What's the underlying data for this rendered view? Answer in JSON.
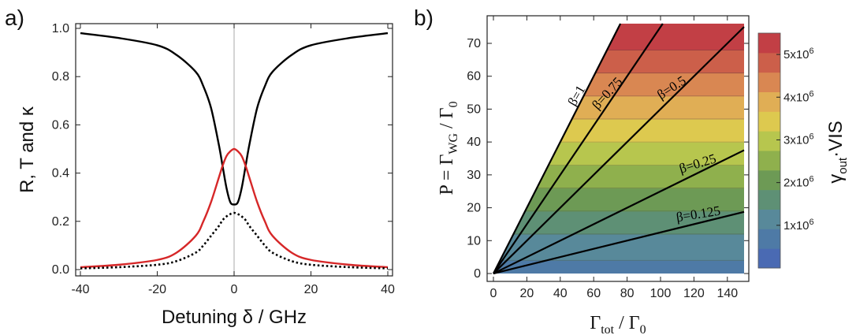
{
  "chart_data": [
    {
      "panel_label": "a)",
      "type": "line",
      "xlabel": "Detuning δ / GHz",
      "ylabel": "R, T and κ",
      "xlim": [
        -40,
        40
      ],
      "ylim": [
        0,
        1
      ],
      "xticks": [
        "-40",
        "-20",
        "0",
        "20",
        "40"
      ],
      "xtick_values": [
        -40,
        -20,
        0,
        20,
        40
      ],
      "yticks": [
        "0.0",
        "0.2",
        "0.4",
        "0.6",
        "0.8",
        "1.0"
      ],
      "ytick_values": [
        0,
        0.2,
        0.4,
        0.6,
        0.8,
        1.0
      ],
      "grid": false,
      "vertical_reference_line_x": 0,
      "series": [
        {
          "color": "#000000",
          "style": "solid",
          "x": [
            -40,
            -30,
            -20,
            -15,
            -10,
            -8,
            -6,
            -4,
            -3,
            -2,
            -1,
            0,
            1,
            2,
            3,
            4,
            6,
            8,
            10,
            15,
            20,
            30,
            40
          ],
          "y": [
            0.98,
            0.96,
            0.93,
            0.89,
            0.82,
            0.76,
            0.67,
            0.52,
            0.43,
            0.34,
            0.28,
            0.27,
            0.28,
            0.34,
            0.43,
            0.52,
            0.67,
            0.76,
            0.82,
            0.89,
            0.93,
            0.96,
            0.98
          ]
        },
        {
          "color": "#d62728",
          "style": "solid",
          "x": [
            -40,
            -30,
            -20,
            -15,
            -10,
            -8,
            -6,
            -4,
            -3,
            -2,
            -1,
            0,
            1,
            2,
            3,
            4,
            6,
            8,
            10,
            15,
            20,
            30,
            40
          ],
          "y": [
            0.01,
            0.02,
            0.04,
            0.07,
            0.14,
            0.2,
            0.28,
            0.38,
            0.43,
            0.47,
            0.49,
            0.5,
            0.49,
            0.47,
            0.43,
            0.38,
            0.28,
            0.2,
            0.14,
            0.07,
            0.04,
            0.02,
            0.01
          ]
        },
        {
          "color": "#000000",
          "style": "dotted",
          "x": [
            -40,
            -30,
            -20,
            -15,
            -10,
            -8,
            -6,
            -4,
            -3,
            -2,
            -1,
            0,
            1,
            2,
            3,
            4,
            6,
            8,
            10,
            15,
            20,
            30,
            40
          ],
          "y": [
            0.005,
            0.01,
            0.02,
            0.035,
            0.07,
            0.1,
            0.14,
            0.18,
            0.205,
            0.22,
            0.23,
            0.235,
            0.23,
            0.22,
            0.205,
            0.18,
            0.14,
            0.1,
            0.07,
            0.035,
            0.02,
            0.01,
            0.005
          ]
        }
      ]
    },
    {
      "panel_label": "b)",
      "type": "heatmap",
      "xlabel_main": "Γ",
      "xlabel_sub": "tot",
      "xlabel_mid": " / Γ",
      "xlabel_sub2": "0",
      "ylabel_main": "P = Γ",
      "ylabel_sub": "WG",
      "ylabel_mid": " / Γ",
      "ylabel_sub2": "0",
      "xlim": [
        0,
        150
      ],
      "ylim": [
        -2,
        76
      ],
      "xticks": [
        "0",
        "20",
        "40",
        "60",
        "80",
        "100",
        "120",
        "140"
      ],
      "xtick_values": [
        0,
        20,
        40,
        60,
        80,
        100,
        120,
        140
      ],
      "yticks": [
        "0",
        "10",
        "20",
        "30",
        "40",
        "50",
        "60",
        "70"
      ],
      "ytick_values": [
        0,
        10,
        20,
        30,
        40,
        50,
        60,
        70
      ],
      "contour_bands_y": [
        0,
        4,
        12,
        19,
        26,
        33,
        40,
        47,
        54,
        61,
        68,
        76
      ],
      "band_colors": [
        "#4a6ab3",
        "#4e7aa6",
        "#58899a",
        "#5e9075",
        "#6d9a55",
        "#8fb04d",
        "#b7c64e",
        "#ddc94f",
        "#e0ae55",
        "#d98752",
        "#cc5f4a",
        "#c23f45"
      ],
      "beta_lines": [
        {
          "label": "β=1",
          "beta": 1
        },
        {
          "label": "β=0.75",
          "beta": 0.75
        },
        {
          "label": "β=0.5",
          "beta": 0.5
        },
        {
          "label": "β=0.25",
          "beta": 0.25
        },
        {
          "label": "β=0.125",
          "beta": 0.125
        }
      ],
      "colorbar": {
        "label_main": "γ",
        "label_sub": "out",
        "label_rest": "·VIS",
        "tick_values": [
          1000000,
          2000000,
          3000000,
          4000000,
          5000000
        ],
        "tick_mantissa": [
          "1x10",
          "2x10",
          "3x10",
          "4x10",
          "5x10"
        ],
        "tick_exponent": "6",
        "range": [
          0,
          5500000
        ]
      }
    }
  ]
}
